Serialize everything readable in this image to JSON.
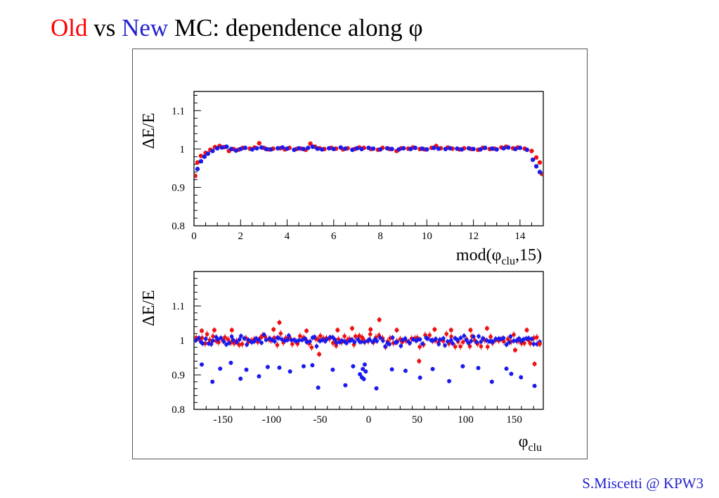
{
  "slide": {
    "title_parts": {
      "old": "Old",
      "vs": " vs ",
      "new": "New",
      "rest": " MC: dependence along φ"
    },
    "footer": "S.Miscetti @ KPW3"
  },
  "colors": {
    "old": "#ff0000",
    "new": "#2222cc",
    "old_points": "#ee1111",
    "new_points": "#1a1aee",
    "axis": "#000000"
  },
  "chart_data": [
    {
      "type": "scatter",
      "ylabel": "ΔE/E",
      "xlabel": {
        "main": "mod(",
        "sym": "φ",
        "sub": "clu",
        "tail": ",15)"
      },
      "xlim": [
        0,
        15
      ],
      "ylim": [
        0.8,
        1.15
      ],
      "x_ticks": [
        0,
        2,
        4,
        6,
        8,
        10,
        12,
        14
      ],
      "y_ticks": [
        0.8,
        0.9,
        1,
        1.1
      ],
      "y_tick_labels": [
        "0.8",
        "0.9",
        "1",
        "1.1"
      ],
      "grid": false,
      "series": [
        {
          "color": "#ee1111",
          "err": 0.005,
          "points": [
            [
              0.05,
              0.93
            ],
            [
              0.15,
              0.965
            ],
            [
              0.3,
              0.982
            ],
            [
              0.5,
              0.99
            ],
            [
              0.7,
              0.998
            ],
            [
              0.9,
              1.005
            ],
            [
              1.1,
              1.008
            ],
            [
              1.3,
              1.005
            ],
            [
              1.5,
              0.995
            ],
            [
              1.7,
              1.0
            ],
            [
              1.9,
              0.998
            ],
            [
              2.1,
              1.003
            ],
            [
              2.4,
              1.001
            ],
            [
              2.6,
              1.004
            ],
            [
              2.8,
              1.015
            ],
            [
              3.0,
              1.003
            ],
            [
              3.2,
              0.999
            ],
            [
              3.4,
              1.001
            ],
            [
              3.7,
              1.002
            ],
            [
              3.9,
              0.999
            ],
            [
              4.1,
              1.003
            ],
            [
              4.4,
              1.0
            ],
            [
              4.6,
              1.001
            ],
            [
              4.8,
              0.998
            ],
            [
              5.0,
              1.014
            ],
            [
              5.2,
              1.006
            ],
            [
              5.4,
              1.002
            ],
            [
              5.6,
              1.0
            ],
            [
              5.9,
              1.003
            ],
            [
              6.1,
              1.001
            ],
            [
              6.4,
              0.999
            ],
            [
              6.6,
              1.002
            ],
            [
              6.9,
              1.0
            ],
            [
              7.1,
              1.004
            ],
            [
              7.3,
              1.003
            ],
            [
              7.6,
              1.0
            ],
            [
              7.9,
              0.998
            ],
            [
              8.1,
              1.003
            ],
            [
              8.4,
              1.0
            ],
            [
              8.7,
              0.995
            ],
            [
              8.9,
              1.002
            ],
            [
              9.2,
              1.001
            ],
            [
              9.4,
              1.004
            ],
            [
              9.7,
              1.0
            ],
            [
              9.9,
              0.999
            ],
            [
              10.2,
              1.003
            ],
            [
              10.4,
              1.008
            ],
            [
              10.6,
              1.002
            ],
            [
              10.9,
              1.004
            ],
            [
              11.1,
              1.001
            ],
            [
              11.4,
              0.999
            ],
            [
              11.6,
              1.002
            ],
            [
              11.9,
              1.0
            ],
            [
              12.2,
              0.998
            ],
            [
              12.4,
              1.003
            ],
            [
              12.7,
              1.0
            ],
            [
              12.9,
              1.001
            ],
            [
              13.2,
              1.004
            ],
            [
              13.4,
              1.006
            ],
            [
              13.7,
              1.002
            ],
            [
              13.9,
              1.004
            ],
            [
              14.2,
              1.001
            ],
            [
              14.5,
              0.995
            ],
            [
              14.7,
              0.978
            ],
            [
              14.85,
              0.965
            ],
            [
              14.95,
              0.935
            ]
          ]
        },
        {
          "color": "#1a1aee",
          "err": 0.004,
          "points": [
            [
              0.15,
              0.948
            ],
            [
              0.3,
              0.968
            ],
            [
              0.45,
              0.98
            ],
            [
              0.6,
              0.988
            ],
            [
              0.8,
              0.995
            ],
            [
              1.0,
              1.002
            ],
            [
              1.2,
              1.004
            ],
            [
              1.4,
              1.006
            ],
            [
              1.6,
              1.0
            ],
            [
              1.8,
              0.996
            ],
            [
              2.0,
              1.0
            ],
            [
              2.2,
              1.003
            ],
            [
              2.5,
              0.999
            ],
            [
              2.7,
              1.002
            ],
            [
              2.9,
              1.004
            ],
            [
              3.1,
              1.0
            ],
            [
              3.3,
              0.999
            ],
            [
              3.6,
              1.002
            ],
            [
              3.8,
              1.004
            ],
            [
              4.0,
              1.001
            ],
            [
              4.3,
              0.998
            ],
            [
              4.5,
              1.002
            ],
            [
              4.7,
              1.0
            ],
            [
              4.9,
              1.003
            ],
            [
              5.1,
              1.006
            ],
            [
              5.3,
              1.001
            ],
            [
              5.5,
              0.999
            ],
            [
              5.8,
              1.002
            ],
            [
              6.0,
              1.0
            ],
            [
              6.3,
              1.004
            ],
            [
              6.5,
              1.001
            ],
            [
              6.8,
              0.998
            ],
            [
              7.0,
              1.002
            ],
            [
              7.2,
              1.0
            ],
            [
              7.5,
              1.003
            ],
            [
              7.7,
              1.001
            ],
            [
              8.0,
              0.999
            ],
            [
              8.3,
              1.002
            ],
            [
              8.5,
              1.0
            ],
            [
              8.8,
              0.999
            ],
            [
              9.0,
              1.002
            ],
            [
              9.3,
              1.0
            ],
            [
              9.5,
              1.003
            ],
            [
              9.8,
              1.001
            ],
            [
              10.0,
              0.999
            ],
            [
              10.3,
              1.003
            ],
            [
              10.5,
              1.001
            ],
            [
              10.8,
              1.0
            ],
            [
              11.0,
              1.002
            ],
            [
              11.3,
              1.001
            ],
            [
              11.5,
              0.999
            ],
            [
              11.8,
              1.002
            ],
            [
              12.0,
              1.0
            ],
            [
              12.3,
              0.999
            ],
            [
              12.5,
              1.003
            ],
            [
              12.8,
              1.001
            ],
            [
              13.0,
              0.999
            ],
            [
              13.3,
              1.002
            ],
            [
              13.5,
              1.004
            ],
            [
              13.8,
              1.0
            ],
            [
              14.0,
              1.003
            ],
            [
              14.3,
              0.998
            ],
            [
              14.55,
              0.972
            ],
            [
              14.7,
              0.955
            ],
            [
              14.85,
              0.94
            ]
          ]
        }
      ]
    },
    {
      "type": "scatter",
      "ylabel": "ΔE/E",
      "xlabel": {
        "main": "",
        "sym": "φ",
        "sub": "clu",
        "tail": ""
      },
      "xlim": [
        -180,
        180
      ],
      "ylim": [
        0.8,
        1.2
      ],
      "x_ticks": [
        -150,
        -100,
        -50,
        0,
        50,
        100,
        150
      ],
      "y_ticks": [
        0.8,
        0.9,
        1,
        1.1
      ],
      "y_tick_labels": [
        "0.8",
        "0.9",
        "1",
        "1.1"
      ],
      "grid": false,
      "bulk": {
        "x_range": [
          -178,
          178
        ],
        "red": {
          "color": "#ee1111",
          "step": 3.0,
          "center": 1.0,
          "spread": 0.018,
          "err": 0.01
        },
        "blue": {
          "color": "#1a1aee",
          "step": 2.6,
          "center": 1.0,
          "spread": 0.014,
          "err": 0.008
        }
      },
      "series": [
        {
          "color": "#1a1aee",
          "err": 0.006,
          "points": [
            [
              -172,
              0.93
            ],
            [
              -161,
              0.88
            ],
            [
              -153,
              0.918
            ],
            [
              -142,
              0.935
            ],
            [
              -132,
              0.889
            ],
            [
              -126,
              0.915
            ],
            [
              -113,
              0.896
            ],
            [
              -104,
              0.923
            ],
            [
              -92,
              0.921
            ],
            [
              -81,
              0.91
            ],
            [
              -67,
              0.925
            ],
            [
              -58,
              0.928
            ],
            [
              -52,
              0.863
            ],
            [
              -37,
              0.915
            ],
            [
              -24,
              0.87
            ],
            [
              -16,
              0.925
            ],
            [
              -9,
              0.902
            ],
            [
              -7,
              0.893
            ],
            [
              -6,
              0.917
            ],
            [
              -5,
              0.888
            ],
            [
              -4,
              0.93
            ],
            [
              -3,
              0.91
            ],
            [
              8,
              0.861
            ],
            [
              24,
              0.916
            ],
            [
              38,
              0.912
            ],
            [
              53,
              0.892
            ],
            [
              66,
              0.917
            ],
            [
              83,
              0.882
            ],
            [
              97,
              0.925
            ],
            [
              113,
              0.92
            ],
            [
              127,
              0.88
            ],
            [
              142,
              0.918
            ],
            [
              147,
              0.903
            ],
            [
              157,
              0.893
            ],
            [
              171,
              0.868
            ]
          ]
        },
        {
          "color": "#ee1111",
          "err": 0.008,
          "points": [
            [
              -172,
              1.028
            ],
            [
              -159,
              1.03
            ],
            [
              -141,
              1.03
            ],
            [
              -98,
              1.032
            ],
            [
              -92,
              1.052
            ],
            [
              -64,
              1.028
            ],
            [
              -51,
              0.96
            ],
            [
              -32,
              1.03
            ],
            [
              -17,
              1.035
            ],
            [
              -6,
              1.005
            ],
            [
              2,
              1.032
            ],
            [
              11,
              1.06
            ],
            [
              29,
              1.03
            ],
            [
              52,
              0.94
            ],
            [
              68,
              1.032
            ],
            [
              85,
              1.03
            ],
            [
              105,
              1.03
            ],
            [
              122,
              1.035
            ],
            [
              151,
              0.972
            ],
            [
              163,
              1.03
            ],
            [
              171,
              0.932
            ],
            [
              176,
              0.99
            ]
          ]
        }
      ]
    }
  ]
}
